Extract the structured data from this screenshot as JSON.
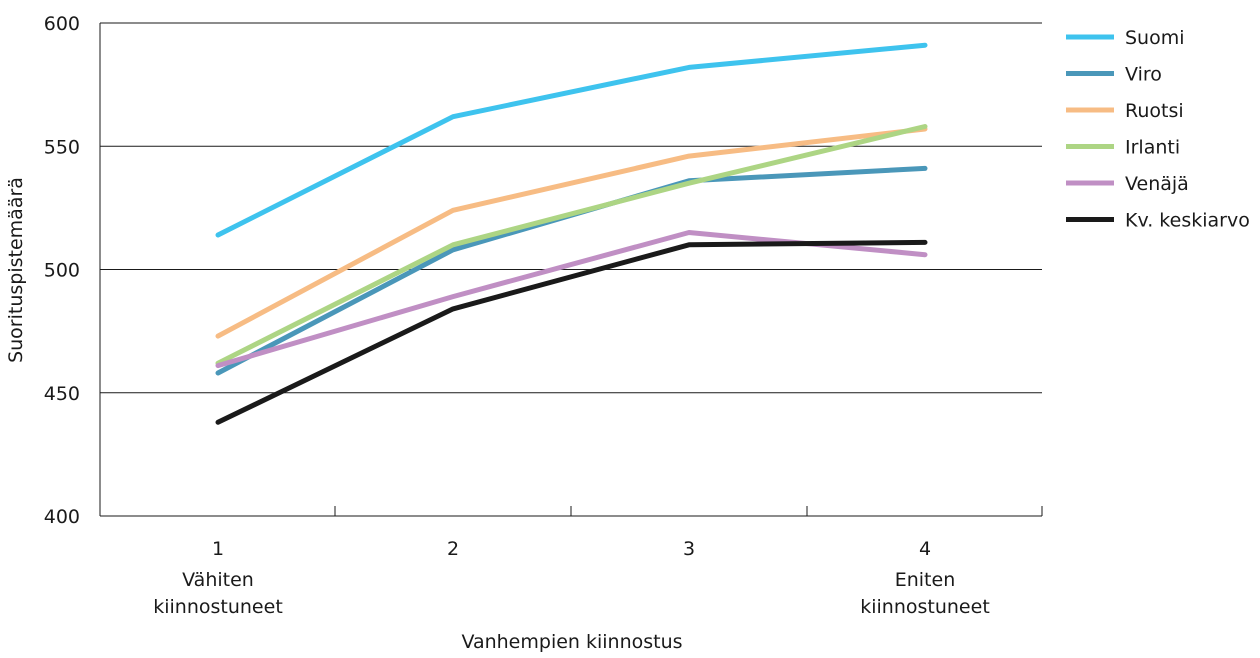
{
  "chart_data": {
    "type": "line",
    "x": [
      "1",
      "2",
      "3",
      "4"
    ],
    "x_sublabels": [
      "Vähiten\nkiinnostuneet",
      "",
      "",
      "Eniten\nkiinnostuneet"
    ],
    "xlabel": "Vanhempien kiinnostus",
    "ylabel": "Suorituspistemäärä",
    "ylim": [
      400,
      600
    ],
    "yticks": [
      400,
      450,
      500,
      550,
      600
    ],
    "grid": true,
    "legend_position": "right",
    "series": [
      {
        "name": "Suomi",
        "color": "#3ec3ee",
        "values": [
          514,
          562,
          582,
          591
        ]
      },
      {
        "name": "Viro",
        "color": "#4a97b9",
        "values": [
          458,
          508,
          536,
          541
        ]
      },
      {
        "name": "Ruotsi",
        "color": "#f7bc84",
        "values": [
          473,
          524,
          546,
          557
        ]
      },
      {
        "name": "Irlanti",
        "color": "#add584",
        "values": [
          462,
          510,
          535,
          558
        ]
      },
      {
        "name": "Venäjä",
        "color": "#c08fc4",
        "values": [
          461,
          489,
          515,
          506
        ]
      },
      {
        "name": "Kv. keskiarvo",
        "color": "#1a1a1a",
        "values": [
          438,
          484,
          510,
          511
        ]
      }
    ]
  }
}
